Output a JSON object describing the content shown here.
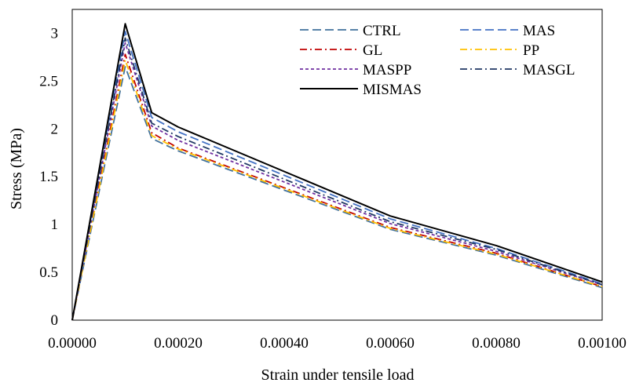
{
  "chart_data": {
    "type": "line",
    "xlabel": "Strain under tensile load",
    "ylabel": "Stress (MPa)",
    "xlim": [
      0,
      0.001
    ],
    "ylim": [
      0,
      3.25
    ],
    "x_ticks": [
      "0.00000",
      "0.00020",
      "0.00040",
      "0.00060",
      "0.00080",
      "0.00100"
    ],
    "y_ticks": [
      "0",
      "0.5",
      "1",
      "1.5",
      "2",
      "2.5",
      "3"
    ],
    "grid": false,
    "legend_position": "top-right",
    "series": [
      {
        "name": "CTRL",
        "color": "#41719C",
        "dash": "dash",
        "x": [
          0,
          0.0001,
          0.00015,
          0.0002,
          0.0006,
          0.0008,
          0.001
        ],
        "y": [
          0,
          2.65,
          1.9,
          1.77,
          0.95,
          0.68,
          0.34
        ]
      },
      {
        "name": "MAS",
        "color": "#4472C4",
        "dash": "dash",
        "x": [
          0,
          0.0001,
          0.00015,
          0.0002,
          0.0006,
          0.0008,
          0.001
        ],
        "y": [
          0,
          3.02,
          2.12,
          1.97,
          1.06,
          0.75,
          0.38
        ]
      },
      {
        "name": "GL",
        "color": "#C00000",
        "dash": "dashdot",
        "x": [
          0,
          0.0001,
          0.00015,
          0.0002,
          0.0006,
          0.0008,
          0.001
        ],
        "y": [
          0,
          2.78,
          1.96,
          1.8,
          0.97,
          0.7,
          0.35
        ]
      },
      {
        "name": "PP",
        "color": "#FFC000",
        "dash": "dashdot",
        "x": [
          0,
          0.0001,
          0.00015,
          0.0002,
          0.0006,
          0.0008,
          0.001
        ],
        "y": [
          0,
          2.72,
          1.93,
          1.79,
          0.96,
          0.69,
          0.35
        ]
      },
      {
        "name": "MASPP",
        "color": "#7030A0",
        "dash": "dot",
        "x": [
          0,
          0.0001,
          0.00015,
          0.0002,
          0.0006,
          0.0008,
          0.001
        ],
        "y": [
          0,
          2.9,
          2.03,
          1.88,
          1.01,
          0.72,
          0.37
        ]
      },
      {
        "name": "MASGL",
        "color": "#203864",
        "dash": "dashdot",
        "x": [
          0,
          0.0001,
          0.00015,
          0.0002,
          0.0006,
          0.0008,
          0.001
        ],
        "y": [
          0,
          2.95,
          2.06,
          1.92,
          1.03,
          0.74,
          0.37
        ]
      },
      {
        "name": "MISMAS",
        "color": "#000000",
        "dash": "solid",
        "x": [
          0,
          0.0001,
          0.00015,
          0.0002,
          0.0006,
          0.0008,
          0.001
        ],
        "y": [
          0,
          3.1,
          2.17,
          2.02,
          1.09,
          0.78,
          0.4
        ]
      }
    ]
  }
}
